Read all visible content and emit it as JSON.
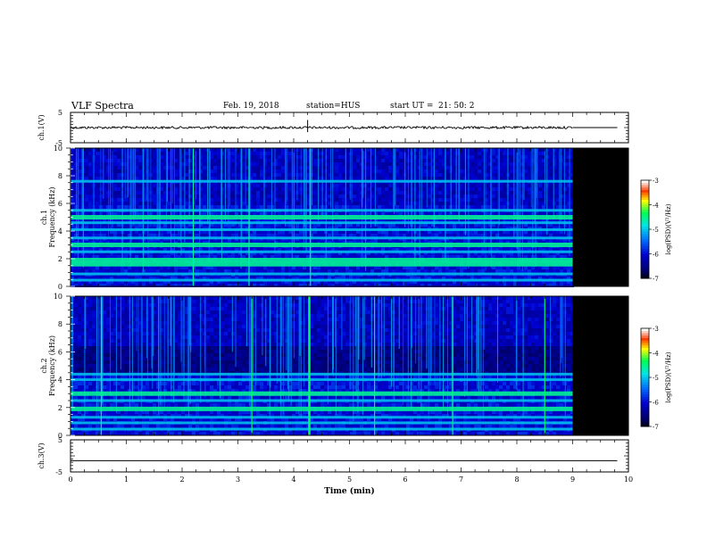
{
  "header": {
    "title": "VLF Spectra",
    "date": "Feb. 19, 2018",
    "station": "station=HUS",
    "start_label": "start  UT  =",
    "start_time": "21: 50: 2"
  },
  "chart_data": [
    {
      "type": "line",
      "panel": "ch1-waveform",
      "ylabel": "ch.1(V)",
      "ylim": [
        -5,
        5
      ],
      "yticks": [
        "5",
        "-5"
      ],
      "xlim": [
        0,
        10
      ],
      "description_values": {
        "data_end_min": 9.0,
        "amplitude_v": 0.4,
        "spike_at_min": 4.25
      }
    },
    {
      "type": "heatmap",
      "panel": "ch1-spectrogram",
      "ylabel_line1": "ch.1",
      "ylabel_line2": "Frequency (kHz)",
      "ylim": [
        0,
        10
      ],
      "yticks": [
        "10",
        "8",
        "6",
        "4",
        "2",
        "0"
      ],
      "xlim": [
        0,
        10
      ],
      "data_end_min": 9.0,
      "bands_khz": [
        0.45,
        0.9,
        1.6,
        1.9,
        2.5,
        3.0,
        3.5,
        4.1,
        4.6,
        5.0,
        5.5,
        7.6
      ],
      "colorbar": {
        "label": "log(PSD)(V²/Hz)",
        "range": [
          -7,
          -3
        ],
        "ticks": [
          "-3",
          "-4",
          "-5",
          "-6",
          "-7"
        ]
      }
    },
    {
      "type": "heatmap",
      "panel": "ch2-spectrogram",
      "ylabel_line1": "ch.2",
      "ylabel_line2": "Frequency (kHz)",
      "ylim": [
        0,
        10
      ],
      "yticks": [
        "10",
        "8",
        "6",
        "4",
        "2",
        "0"
      ],
      "xlim": [
        0,
        10
      ],
      "data_end_min": 9.0,
      "bands_khz": [
        0.45,
        0.9,
        1.3,
        1.9,
        2.5,
        3.0,
        4.0,
        4.4
      ],
      "spikes_min": [
        0.55,
        3.25,
        4.28,
        5.45,
        6.85,
        8.5
      ],
      "colorbar": {
        "label": "log(PSD)(V²/Hz)",
        "range": [
          -7,
          -3
        ],
        "ticks": [
          "-3",
          "-4",
          "-5",
          "-6",
          "-7"
        ]
      }
    },
    {
      "type": "line",
      "panel": "ch3-waveform",
      "ylabel": "ch.3(V)",
      "ylim": [
        -5,
        5
      ],
      "yticks": [
        "5",
        "-5"
      ],
      "xlim": [
        0,
        10
      ],
      "xlabel": "Time  (min)",
      "xticks": [
        "0",
        "1",
        "2",
        "3",
        "4",
        "5",
        "6",
        "7",
        "8",
        "9",
        "10"
      ],
      "description_values": {
        "flat_value_v": -1.5
      }
    }
  ]
}
